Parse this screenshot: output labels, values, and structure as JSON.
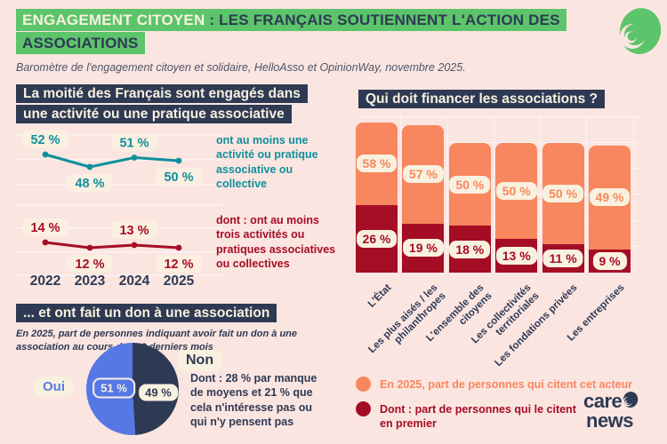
{
  "header": {
    "title_highlight": "ENGAGEMENT CITOYEN",
    "title_rest": " : LES FRANÇAIS SOUTIENNENT L'ACTION DES ASSOCIATIONS",
    "subtitle": "Baromètre de l'engagement citoyen et solidaire, HelloAsso et OpinionWay, novembre 2025."
  },
  "brand": {
    "line1": "care",
    "line2": "news"
  },
  "colors": {
    "background": "#fbe5e1",
    "green": "#5cc46a",
    "navy": "#2e3a54",
    "cream": "#f9f1df",
    "teal": "#0f909c",
    "dark_red": "#a50d24",
    "orange": "#f8865e",
    "blue": "#5678e4"
  },
  "chart_data": [
    {
      "type": "line",
      "title": "La moitié des Français sont engagés dans une activité ou une pratique associative",
      "x": [
        "2022",
        "2023",
        "2024",
        "2025"
      ],
      "series": [
        {
          "name": "ont au moins une activité ou pratique associative ou collective",
          "values": [
            52,
            48,
            51,
            50
          ],
          "color": "#0f909c"
        },
        {
          "name": "dont : ont au moins trois activités ou pratiques associatives ou collectives",
          "values": [
            14,
            12,
            13,
            12
          ],
          "color": "#a50d24"
        }
      ],
      "unit": "%",
      "grid": "horizontal-light",
      "legend_position": "right"
    },
    {
      "type": "pie",
      "title": "... et ont fait un don à une association",
      "subtitle": "En 2025, part de personnes indiquant avoir fait un don à une association au cours des 12 derniers mois",
      "slices": [
        {
          "label": "Oui",
          "value": 51,
          "color": "#5678e4"
        },
        {
          "label": "Non",
          "value": 49,
          "color": "#2e3a54"
        }
      ],
      "annotation": "Dont : 28 % par manque de moyens et 21 % que cela n'intéresse pas ou qui n'y pensent pas",
      "unit": "%"
    },
    {
      "type": "bar",
      "title": "Qui doit financer les associations ?",
      "categories": [
        "L'État",
        "Les plus aisés / les philanthropes",
        "L'ensemble des citoyens",
        "Les collectivités territoriales",
        "Les fondations privées",
        "Les entreprises"
      ],
      "series": [
        {
          "name": "En 2025, part de personnes qui citent cet acteur",
          "values": [
            58,
            57,
            50,
            50,
            50,
            49
          ],
          "color": "#f8865e"
        },
        {
          "name": "Dont : part de personnes qui le citent en premier",
          "values": [
            26,
            19,
            18,
            13,
            11,
            9
          ],
          "color": "#a50d24"
        }
      ],
      "ylim": [
        0,
        60
      ],
      "unit": "%",
      "grid": "horizontal-light",
      "legend_position": "bottom"
    }
  ]
}
